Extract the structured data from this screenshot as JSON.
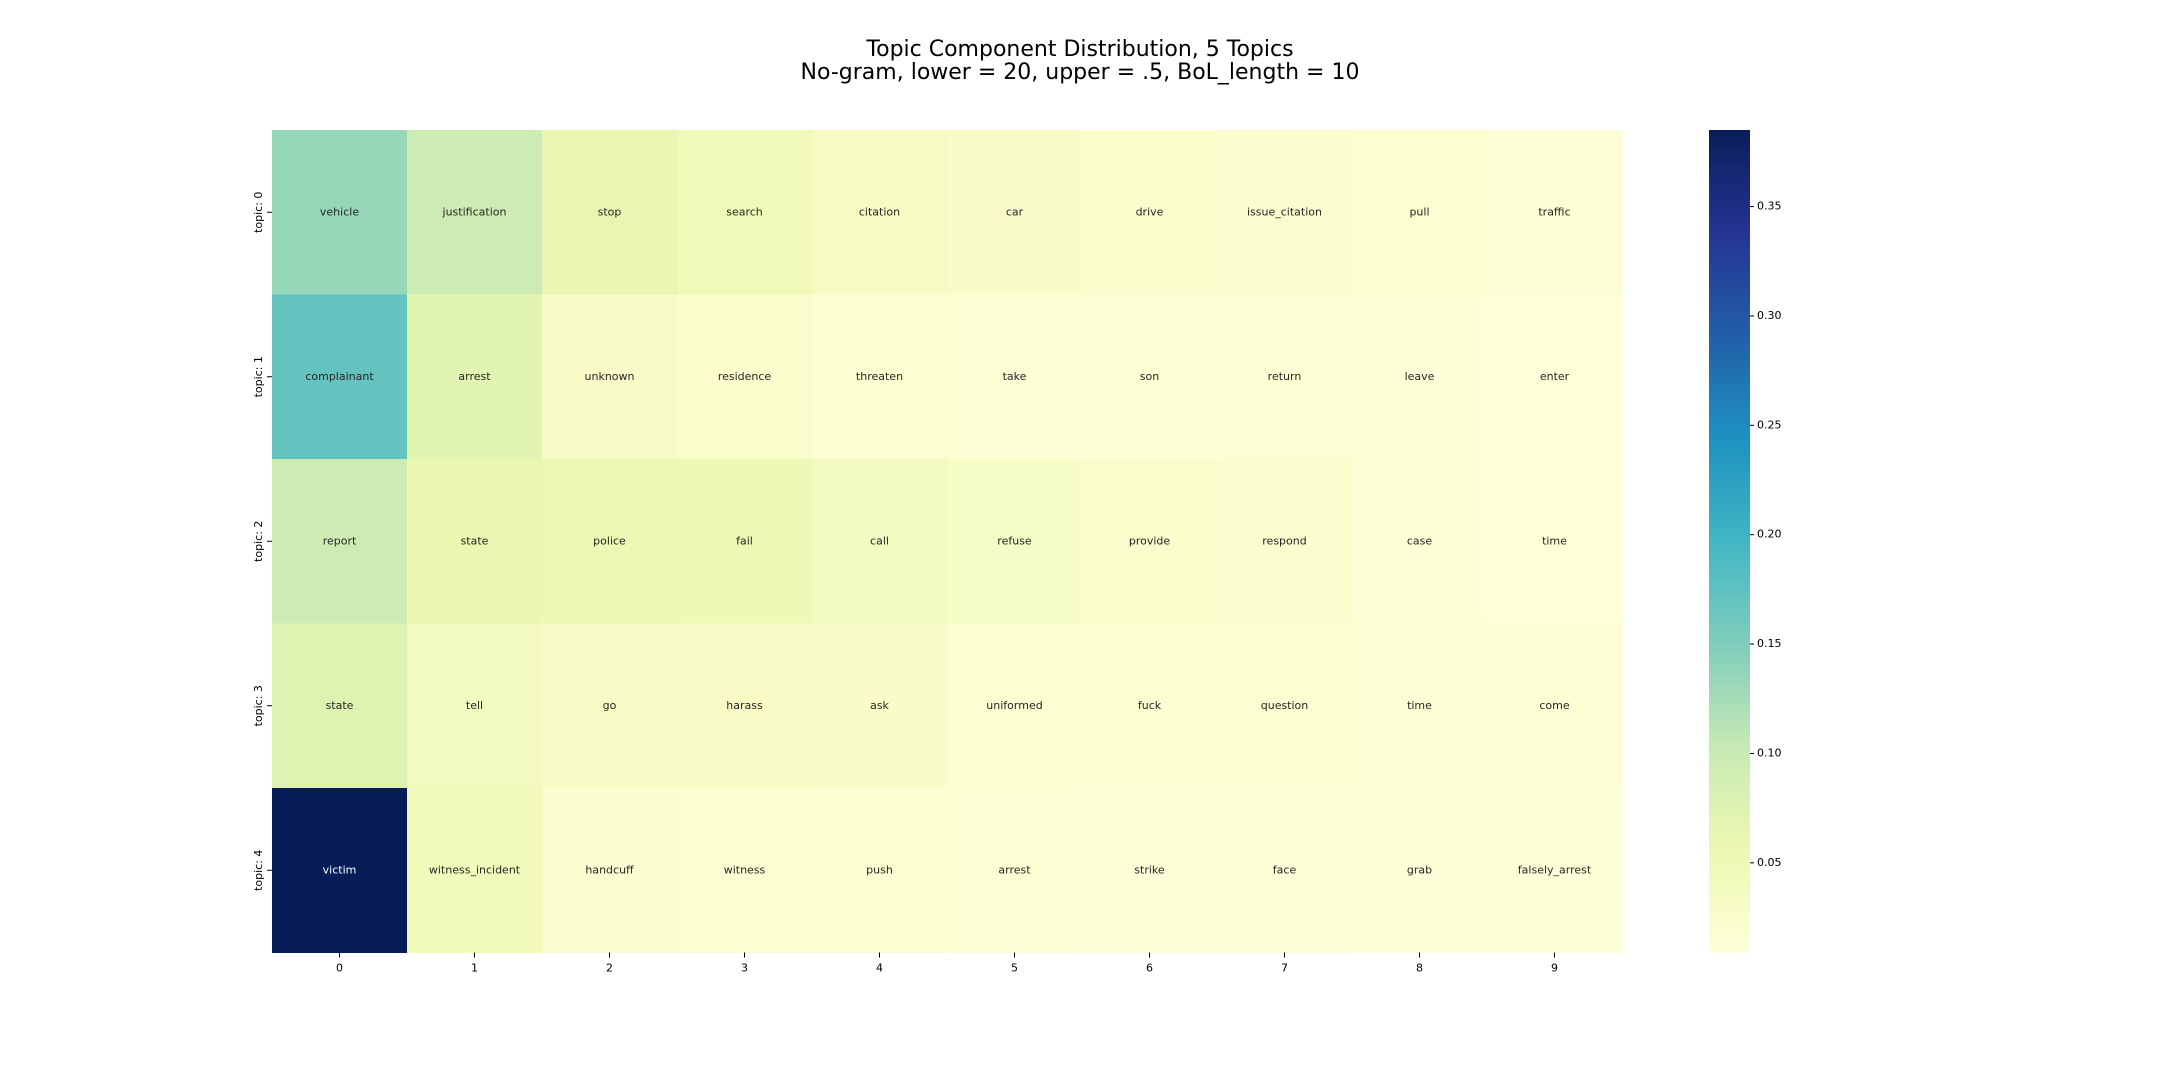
{
  "chart_data": {
    "type": "heatmap",
    "title": "Topic Component Distribution, 5 Topics",
    "subtitle": "No-gram, lower = 20, upper = .5, BoL_length = 10",
    "x_ticks": [
      "0",
      "1",
      "2",
      "3",
      "4",
      "5",
      "6",
      "7",
      "8",
      "9"
    ],
    "y_ticks": [
      "topic: 0",
      "topic: 1",
      "topic: 2",
      "topic: 3",
      "topic: 4"
    ],
    "words": [
      [
        "vehicle",
        "justification",
        "stop",
        "search",
        "citation",
        "car",
        "drive",
        "issue_citation",
        "pull",
        "traffic"
      ],
      [
        "complainant",
        "arrest",
        "unknown",
        "residence",
        "threaten",
        "take",
        "son",
        "return",
        "leave",
        "enter"
      ],
      [
        "report",
        "state",
        "police",
        "fail",
        "call",
        "refuse",
        "provide",
        "respond",
        "case",
        "time"
      ],
      [
        "state",
        "tell",
        "go",
        "harass",
        "ask",
        "uniformed",
        "fuck",
        "question",
        "time",
        "come"
      ],
      [
        "victim",
        "witness_incident",
        "handcuff",
        "witness",
        "push",
        "arrest",
        "strike",
        "face",
        "grab",
        "falsely_arrest"
      ]
    ],
    "values": [
      [
        0.135,
        0.095,
        0.062,
        0.048,
        0.035,
        0.028,
        0.024,
        0.02,
        0.017,
        0.014
      ],
      [
        0.17,
        0.07,
        0.03,
        0.025,
        0.018,
        0.016,
        0.015,
        0.015,
        0.011,
        0.01
      ],
      [
        0.095,
        0.06,
        0.055,
        0.05,
        0.04,
        0.032,
        0.025,
        0.022,
        0.012,
        0.01
      ],
      [
        0.075,
        0.04,
        0.03,
        0.03,
        0.028,
        0.018,
        0.017,
        0.017,
        0.016,
        0.015
      ],
      [
        0.385,
        0.045,
        0.02,
        0.018,
        0.018,
        0.015,
        0.013,
        0.013,
        0.012,
        0.011
      ]
    ],
    "colorbar": {
      "colormap": "YlGnBu",
      "range": [
        0.009,
        0.385
      ],
      "ticks": [
        0.05,
        0.1,
        0.15,
        0.2,
        0.25,
        0.3,
        0.35
      ],
      "tick_labels": [
        "0.05",
        "0.10",
        "0.15",
        "0.20",
        "0.25",
        "0.30",
        "0.35"
      ]
    }
  }
}
